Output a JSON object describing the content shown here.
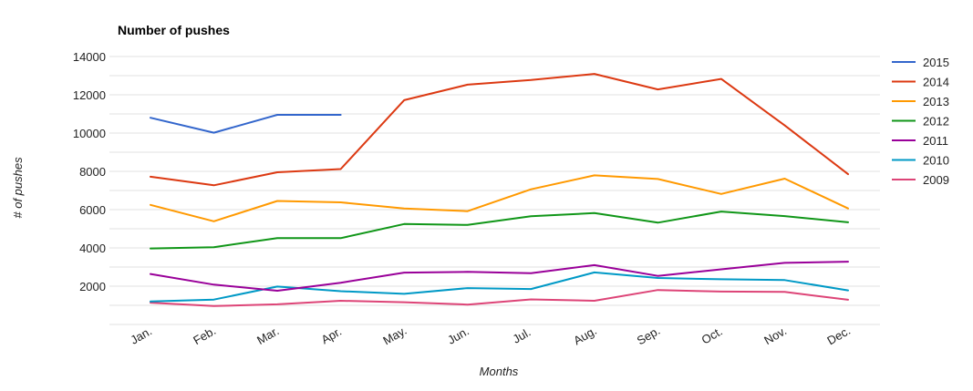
{
  "chart_data": {
    "type": "line",
    "title": "Number of pushes",
    "xlabel": "Months",
    "ylabel": "# of pushes",
    "categories": [
      "Jan.",
      "Feb.",
      "Mar.",
      "Apr.",
      "May.",
      "Jun.",
      "Jul.",
      "Aug.",
      "Sep.",
      "Oct.",
      "Nov.",
      "Dec."
    ],
    "y_ticks": [
      2000,
      4000,
      6000,
      8000,
      10000,
      12000,
      14000
    ],
    "ylim": [
      0,
      14000
    ],
    "grid": true,
    "legend_position": "right",
    "series": [
      {
        "name": "2015",
        "color": "#3366cc",
        "values": [
          10800,
          10020,
          10950,
          10950,
          null,
          null,
          null,
          null,
          null,
          null,
          null,
          null
        ]
      },
      {
        "name": "2014",
        "color": "#dc3912",
        "values": [
          7720,
          7270,
          7950,
          8120,
          11720,
          12530,
          12770,
          13090,
          12280,
          12830,
          10400,
          7850
        ]
      },
      {
        "name": "2013",
        "color": "#ff9900",
        "values": [
          6250,
          5390,
          6450,
          6380,
          6060,
          5920,
          7060,
          7790,
          7600,
          6820,
          7620,
          6060
        ]
      },
      {
        "name": "2012",
        "color": "#109618",
        "values": [
          3970,
          4040,
          4510,
          4510,
          5250,
          5200,
          5650,
          5820,
          5320,
          5900,
          5660,
          5340
        ]
      },
      {
        "name": "2011",
        "color": "#990099",
        "values": [
          2640,
          2080,
          1760,
          2180,
          2710,
          2750,
          2680,
          3100,
          2540,
          2880,
          3220,
          3280
        ]
      },
      {
        "name": "2010",
        "color": "#0099c6",
        "values": [
          1200,
          1300,
          1980,
          1740,
          1600,
          1900,
          1850,
          2720,
          2430,
          2360,
          2320,
          1780
        ]
      },
      {
        "name": "2009",
        "color": "#dd4477",
        "values": [
          1140,
          960,
          1050,
          1240,
          1160,
          1040,
          1310,
          1240,
          1800,
          1720,
          1700,
          1290
        ]
      }
    ]
  }
}
